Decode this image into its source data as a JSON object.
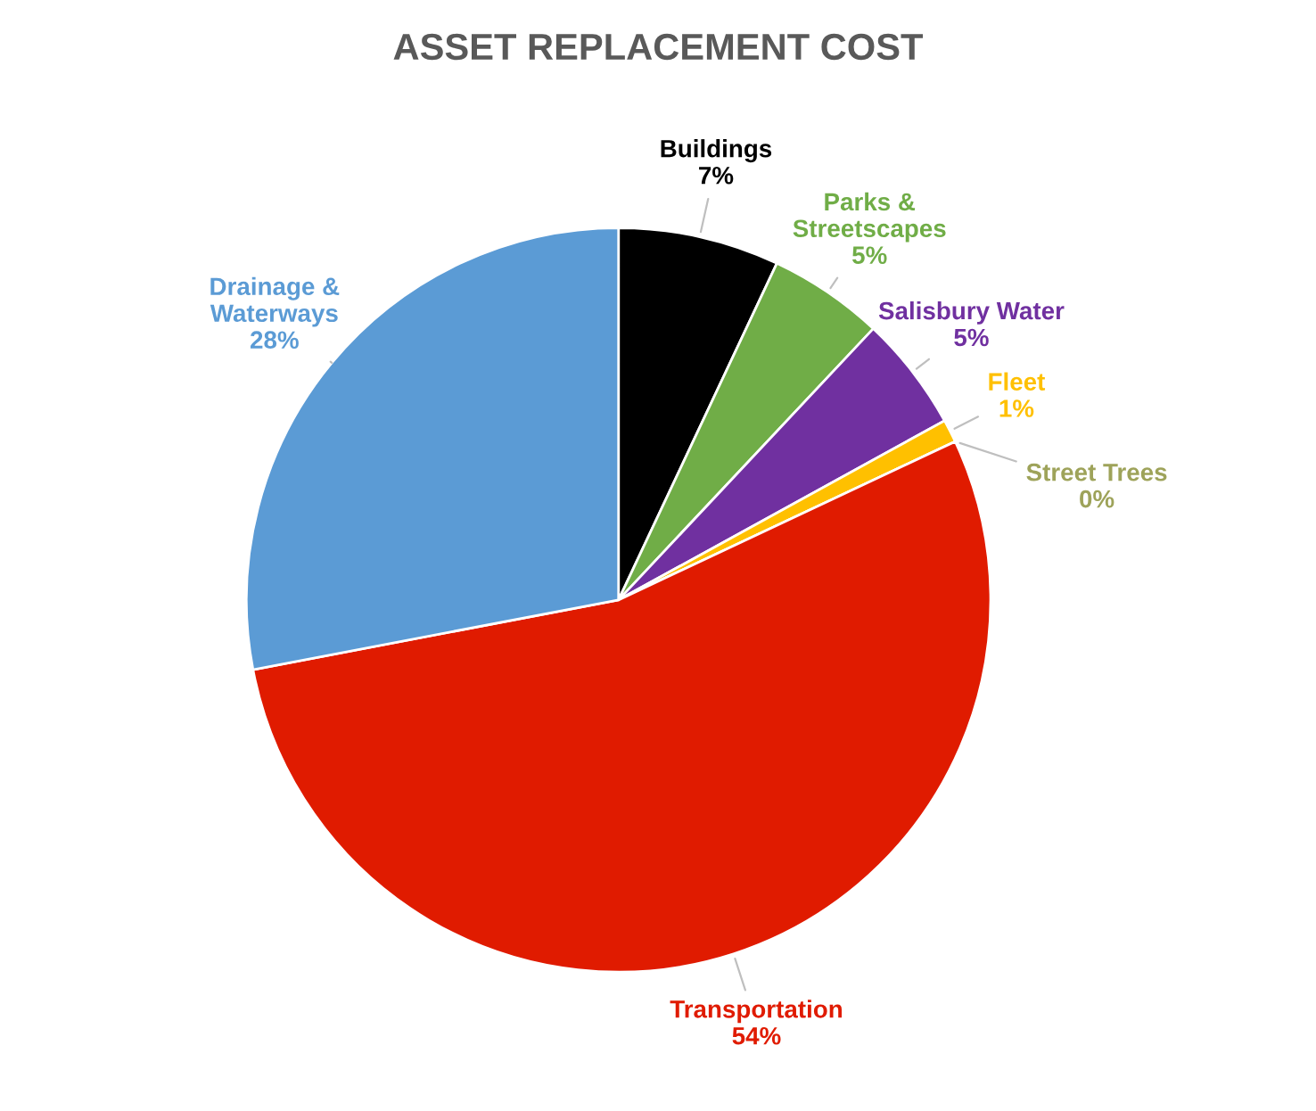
{
  "chart_data": {
    "type": "pie",
    "title": "ASSET REPLACEMENT COST",
    "categories": [
      "Buildings",
      "Parks & Streetscapes",
      "Salisbury Water",
      "Fleet",
      "Street Trees",
      "Transportation",
      "Drainage & Waterways"
    ],
    "values": [
      7,
      5,
      5,
      1,
      0,
      54,
      28
    ],
    "value_labels": [
      "7%",
      "5%",
      "5%",
      "1%",
      "0%",
      "54%",
      "28%"
    ],
    "colors": [
      "#000000",
      "#70ad47",
      "#7030a0",
      "#ffc000",
      "#9ea35a",
      "#e01b00",
      "#5b9bd5"
    ],
    "legend": false
  }
}
